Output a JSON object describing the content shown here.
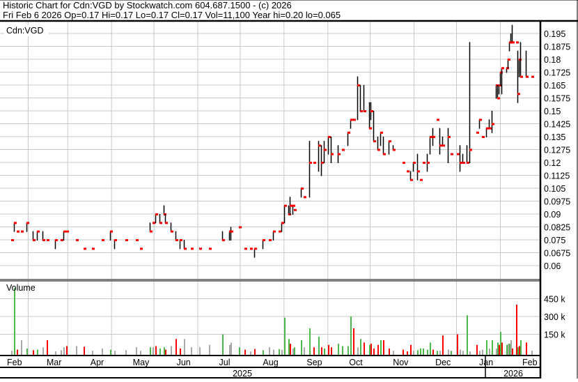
{
  "header": {
    "title": "Historic Chart for Cdn:VGD by Stockwatch.com 604.687.1500 - (c) 2026",
    "summary": "Fri Feb  6 2026  Op=0.17  Hi=0.17  Lo=0.17  Cl=0.17  Vol=11,100  Year hi=0.20  lo=0.065"
  },
  "colors": {
    "up": "#4cb84c",
    "down": "#ff0000",
    "unchanged": "#a8a8a8",
    "bar": "#000000",
    "close_tick": "#ff0000",
    "grid": "#c8c8c8"
  },
  "chart_data": [
    {
      "type": "ohlc",
      "symbol_label": "Cdn:VGD",
      "y_ticks": [
        "0.06",
        "0.0675",
        "0.075",
        "0.0825",
        "0.09",
        "0.0975",
        "0.105",
        "0.1125",
        "0.12",
        "0.1275",
        "0.135",
        "0.1425",
        "0.15",
        "0.1575",
        "0.165",
        "0.1725",
        "0.18",
        "0.1875",
        "0.195"
      ],
      "ylim": [
        0.0535,
        0.2025
      ],
      "grid": true,
      "x_months": [
        "Feb",
        "Mar",
        "Apr",
        "May",
        "Jun",
        "Jul",
        "Aug",
        "Sep",
        "Oct",
        "Nov",
        "Dec",
        "Jan",
        "Feb"
      ],
      "x_years": [
        "2025",
        "2026"
      ],
      "bars_fields": [
        "date",
        "high",
        "low",
        "close"
      ],
      "bars": [
        [
          "2025-02-03",
          0.075,
          0.075,
          0.075
        ],
        [
          "2025-02-05",
          0.085,
          0.08,
          0.085
        ],
        [
          "2025-02-07",
          0.08,
          0.08,
          0.08
        ],
        [
          "2025-02-10",
          0.08,
          0.08,
          0.08
        ],
        [
          "2025-02-14",
          0.085,
          0.08,
          0.085
        ],
        [
          "2025-02-18",
          0.08,
          0.075,
          0.075
        ],
        [
          "2025-02-21",
          0.08,
          0.075,
          0.08
        ],
        [
          "2025-02-25",
          0.08,
          0.075,
          0.075
        ],
        [
          "2025-02-28",
          0.075,
          0.075,
          0.075
        ],
        [
          "2025-03-06",
          0.075,
          0.07,
          0.075
        ],
        [
          "2025-03-10",
          0.075,
          0.075,
          0.075
        ],
        [
          "2025-03-12",
          0.08,
          0.075,
          0.08
        ],
        [
          "2025-03-14",
          0.08,
          0.08,
          0.08
        ],
        [
          "2025-03-21",
          0.075,
          0.075,
          0.075
        ],
        [
          "2025-03-26",
          0.07,
          0.07,
          0.07
        ],
        [
          "2025-04-01",
          0.07,
          0.07,
          0.07
        ],
        [
          "2025-04-08",
          0.075,
          0.075,
          0.075
        ],
        [
          "2025-04-14",
          0.08,
          0.075,
          0.08
        ],
        [
          "2025-04-17",
          0.075,
          0.07,
          0.075
        ],
        [
          "2025-04-25",
          0.075,
          0.075,
          0.075
        ],
        [
          "2025-05-02",
          0.075,
          0.075,
          0.075
        ],
        [
          "2025-05-05",
          0.07,
          0.07,
          0.07
        ],
        [
          "2025-05-12",
          0.085,
          0.08,
          0.08
        ],
        [
          "2025-05-14",
          0.085,
          0.085,
          0.085
        ],
        [
          "2025-05-16",
          0.09,
          0.085,
          0.09
        ],
        [
          "2025-05-19",
          0.09,
          0.085,
          0.085
        ],
        [
          "2025-05-22",
          0.095,
          0.09,
          0.09
        ],
        [
          "2025-05-23",
          0.09,
          0.085,
          0.085
        ],
        [
          "2025-05-27",
          0.085,
          0.08,
          0.08
        ],
        [
          "2025-05-30",
          0.08,
          0.075,
          0.075
        ],
        [
          "2025-06-02",
          0.075,
          0.07,
          0.075
        ],
        [
          "2025-06-05",
          0.075,
          0.07,
          0.07
        ],
        [
          "2025-06-10",
          0.07,
          0.07,
          0.07
        ],
        [
          "2025-06-16",
          0.07,
          0.07,
          0.07
        ],
        [
          "2025-06-23",
          0.07,
          0.07,
          0.07
        ],
        [
          "2025-07-02",
          0.08,
          0.075,
          0.075
        ],
        [
          "2025-07-07",
          0.08,
          0.075,
          0.08
        ],
        [
          "2025-07-08",
          0.0825,
          0.075,
          0.08
        ],
        [
          "2025-07-14",
          0.0825,
          0.0825,
          0.0825
        ],
        [
          "2025-07-18",
          0.07,
          0.07,
          0.07
        ],
        [
          "2025-07-22",
          0.07,
          0.07,
          0.07
        ],
        [
          "2025-07-25",
          0.07,
          0.065,
          0.07
        ],
        [
          "2025-07-31",
          0.075,
          0.07,
          0.075
        ],
        [
          "2025-08-04",
          0.075,
          0.075,
          0.075
        ],
        [
          "2025-08-07",
          0.08,
          0.075,
          0.08
        ],
        [
          "2025-08-11",
          0.08,
          0.08,
          0.08
        ],
        [
          "2025-08-13",
          0.085,
          0.08,
          0.085
        ],
        [
          "2025-08-15",
          0.095,
          0.085,
          0.095
        ],
        [
          "2025-08-18",
          0.095,
          0.09,
          0.09
        ],
        [
          "2025-08-19",
          0.1,
          0.09,
          0.095
        ],
        [
          "2025-08-21",
          0.095,
          0.09,
          0.095
        ],
        [
          "2025-08-22",
          0.0925,
          0.0925,
          0.0925
        ],
        [
          "2025-08-27",
          0.105,
          0.1,
          0.105
        ],
        [
          "2025-08-29",
          0.1,
          0.1,
          0.1
        ],
        [
          "2025-09-02",
          0.1325,
          0.1,
          0.12
        ],
        [
          "2025-09-05",
          0.12,
          0.12,
          0.12
        ],
        [
          "2025-09-08",
          0.1325,
          0.115,
          0.13
        ],
        [
          "2025-09-10",
          0.13,
          0.1125,
          0.12
        ],
        [
          "2025-09-12",
          0.1325,
          0.12,
          0.1275
        ],
        [
          "2025-09-15",
          0.135,
          0.125,
          0.135
        ],
        [
          "2025-09-17",
          0.135,
          0.12,
          0.125
        ],
        [
          "2025-09-22",
          0.13,
          0.12,
          0.125
        ],
        [
          "2025-09-25",
          0.1275,
          0.1275,
          0.1275
        ],
        [
          "2025-09-29",
          0.1375,
          0.13,
          0.1375
        ],
        [
          "2025-10-01",
          0.145,
          0.14,
          0.145
        ],
        [
          "2025-10-03",
          0.145,
          0.145,
          0.145
        ],
        [
          "2025-10-06",
          0.17,
          0.145,
          0.165
        ],
        [
          "2025-10-08",
          0.165,
          0.15,
          0.15
        ],
        [
          "2025-10-10",
          0.165,
          0.15,
          0.15
        ],
        [
          "2025-10-14",
          0.155,
          0.14,
          0.14
        ],
        [
          "2025-10-15",
          0.155,
          0.145,
          0.15
        ],
        [
          "2025-10-17",
          0.15,
          0.1325,
          0.1325
        ],
        [
          "2025-10-20",
          0.135,
          0.1275,
          0.1275
        ],
        [
          "2025-10-22",
          0.1375,
          0.13,
          0.1375
        ],
        [
          "2025-10-24",
          0.135,
          0.125,
          0.125
        ],
        [
          "2025-10-28",
          0.1325,
          0.125,
          0.1325
        ],
        [
          "2025-10-31",
          0.13,
          0.1275,
          0.1275
        ],
        [
          "2025-11-07",
          0.12,
          0.12,
          0.12
        ],
        [
          "2025-11-10",
          0.115,
          0.115,
          0.115
        ],
        [
          "2025-11-12",
          0.115,
          0.11,
          0.11
        ],
        [
          "2025-11-14",
          0.12,
          0.115,
          0.12
        ],
        [
          "2025-11-17",
          0.125,
          0.11,
          0.115
        ],
        [
          "2025-11-19",
          0.11,
          0.11,
          0.11
        ],
        [
          "2025-11-21",
          0.12,
          0.12,
          0.12
        ],
        [
          "2025-11-24",
          0.125,
          0.115,
          0.12
        ],
        [
          "2025-11-26",
          0.135,
          0.125,
          0.135
        ],
        [
          "2025-11-28",
          0.14,
          0.13,
          0.135
        ],
        [
          "2025-12-01",
          0.145,
          0.145,
          0.145
        ],
        [
          "2025-12-03",
          0.14,
          0.125,
          0.13
        ],
        [
          "2025-12-05",
          0.135,
          0.13,
          0.13
        ],
        [
          "2025-12-09",
          0.14,
          0.12,
          0.135
        ],
        [
          "2025-12-11",
          0.125,
          0.125,
          0.125
        ],
        [
          "2025-12-15",
          0.125,
          0.125,
          0.125
        ],
        [
          "2025-12-17",
          0.13,
          0.115,
          0.12
        ],
        [
          "2025-12-19",
          0.125,
          0.12,
          0.12
        ],
        [
          "2025-12-22",
          0.13,
          0.12,
          0.12
        ],
        [
          "2025-12-24",
          0.19,
          0.12,
          0.1275
        ],
        [
          "2025-12-29",
          0.1375,
          0.1375,
          0.1375
        ],
        [
          "2025-12-31",
          0.145,
          0.14,
          0.145
        ],
        [
          "2026-01-02",
          0.135,
          0.135,
          0.135
        ],
        [
          "2026-01-05",
          0.14,
          0.135,
          0.14
        ],
        [
          "2026-01-07",
          0.145,
          0.14,
          0.14
        ],
        [
          "2026-01-09",
          0.15,
          0.1375,
          0.1425
        ],
        [
          "2026-01-12",
          0.165,
          0.1575,
          0.165
        ],
        [
          "2026-01-13",
          0.165,
          0.1575,
          0.1575
        ],
        [
          "2026-01-14",
          0.165,
          0.16,
          0.165
        ],
        [
          "2026-01-15",
          0.1725,
          0.165,
          0.1725
        ],
        [
          "2026-01-16",
          0.175,
          0.16,
          0.175
        ],
        [
          "2026-01-19",
          0.175,
          0.1725,
          0.175
        ],
        [
          "2026-01-20",
          0.18,
          0.175,
          0.18
        ],
        [
          "2026-01-21",
          0.19,
          0.185,
          0.19
        ],
        [
          "2026-01-22",
          0.195,
          0.19,
          0.19
        ],
        [
          "2026-01-23",
          0.2,
          0.19,
          0.19
        ],
        [
          "2026-01-26",
          0.19,
          0.19,
          0.19
        ],
        [
          "2026-01-27",
          0.185,
          0.155,
          0.16
        ],
        [
          "2026-01-28",
          0.18,
          0.17,
          0.18
        ],
        [
          "2026-01-29",
          0.19,
          0.17,
          0.17
        ],
        [
          "2026-02-02",
          0.185,
          0.17,
          0.17
        ],
        [
          "2026-02-06",
          0.17,
          0.17,
          0.17
        ]
      ]
    },
    {
      "type": "bar",
      "title": "Volume",
      "y_ticks": [
        "150 k",
        "300 k",
        "450 k"
      ],
      "y_tick_values": [
        150000,
        300000,
        450000
      ],
      "ylim": [
        0,
        620000
      ],
      "grid": true,
      "volume_fields": [
        "volume",
        "direction"
      ],
      "volumes": [
        [
          10000,
          "unchanged"
        ],
        [
          540000,
          "up"
        ],
        [
          20000,
          "down"
        ],
        [
          100000,
          "unchanged"
        ],
        [
          30000,
          "up"
        ],
        [
          15000,
          "down"
        ],
        [
          20000,
          "up"
        ],
        [
          40000,
          "unchanged"
        ],
        [
          100000,
          "down"
        ],
        [
          5000,
          "unchanged"
        ],
        [
          15000,
          "unchanged"
        ],
        [
          40000,
          "unchanged"
        ],
        [
          50000,
          "down"
        ],
        [
          50000,
          "unchanged"
        ],
        [
          45000,
          "down"
        ],
        [
          10000,
          "unchanged"
        ],
        [
          30000,
          "unchanged"
        ],
        [
          20000,
          "up"
        ],
        [
          10000,
          "unchanged"
        ],
        [
          15000,
          "unchanged"
        ],
        [
          40000,
          "unchanged"
        ],
        [
          10000,
          "unchanged"
        ],
        [
          40000,
          "up"
        ],
        [
          40000,
          "unchanged"
        ],
        [
          50000,
          "down"
        ],
        [
          30000,
          "up"
        ],
        [
          40000,
          "up"
        ],
        [
          20000,
          "down"
        ],
        [
          50000,
          "unchanged"
        ],
        [
          110000,
          "down"
        ],
        [
          30000,
          "down"
        ],
        [
          110000,
          "unchanged"
        ],
        [
          40000,
          "unchanged"
        ],
        [
          40000,
          "unchanged"
        ],
        [
          60000,
          "unchanged"
        ],
        [
          150000,
          "up"
        ],
        [
          60000,
          "unchanged"
        ],
        [
          80000,
          "unchanged"
        ],
        [
          40000,
          "up"
        ],
        [
          20000,
          "down"
        ],
        [
          5000,
          "unchanged"
        ],
        [
          25000,
          "down"
        ],
        [
          15000,
          "up"
        ],
        [
          40000,
          "unchanged"
        ],
        [
          20000,
          "unchanged"
        ],
        [
          25000,
          "up"
        ],
        [
          20000,
          "unchanged"
        ],
        [
          290000,
          "up"
        ],
        [
          110000,
          "up"
        ],
        [
          70000,
          "down"
        ],
        [
          30000,
          "unchanged"
        ],
        [
          40000,
          "up"
        ],
        [
          100000,
          "up"
        ],
        [
          40000,
          "unchanged"
        ],
        [
          200000,
          "up"
        ],
        [
          40000,
          "down"
        ],
        [
          130000,
          "up"
        ],
        [
          40000,
          "down"
        ],
        [
          30000,
          "up"
        ],
        [
          60000,
          "down"
        ],
        [
          40000,
          "down"
        ],
        [
          70000,
          "up"
        ],
        [
          50000,
          "up"
        ],
        [
          50000,
          "up"
        ],
        [
          300000,
          "up"
        ],
        [
          200000,
          "down"
        ],
        [
          40000,
          "unchanged"
        ],
        [
          110000,
          "up"
        ],
        [
          80000,
          "down"
        ],
        [
          60000,
          "up"
        ],
        [
          70000,
          "down"
        ],
        [
          30000,
          "down"
        ],
        [
          60000,
          "down"
        ],
        [
          100000,
          "up"
        ],
        [
          100000,
          "down"
        ],
        [
          30000,
          "down"
        ],
        [
          10000,
          "unchanged"
        ],
        [
          20000,
          "down"
        ],
        [
          5000,
          "down"
        ],
        [
          60000,
          "down"
        ],
        [
          10000,
          "unchanged"
        ],
        [
          15000,
          "up"
        ],
        [
          30000,
          "up"
        ],
        [
          30000,
          "up"
        ],
        [
          20000,
          "up"
        ],
        [
          80000,
          "up"
        ],
        [
          20000,
          "down"
        ],
        [
          10000,
          "up"
        ],
        [
          10000,
          "unchanged"
        ],
        [
          140000,
          "down"
        ],
        [
          20000,
          "unchanged"
        ],
        [
          10000,
          "up"
        ],
        [
          150000,
          "down"
        ],
        [
          20000,
          "unchanged"
        ],
        [
          10000,
          "unchanged"
        ],
        [
          310000,
          "up"
        ],
        [
          5000,
          "unchanged"
        ],
        [
          60000,
          "down"
        ],
        [
          10000,
          "unchanged"
        ],
        [
          20000,
          "unchanged"
        ],
        [
          100000,
          "up"
        ],
        [
          30000,
          "unchanged"
        ],
        [
          100000,
          "up"
        ],
        [
          30000,
          "unchanged"
        ],
        [
          80000,
          "up"
        ],
        [
          60000,
          "down"
        ],
        [
          170000,
          "up"
        ],
        [
          80000,
          "down"
        ],
        [
          60000,
          "up"
        ],
        [
          70000,
          "unchanged"
        ],
        [
          70000,
          "up"
        ],
        [
          100000,
          "unchanged"
        ],
        [
          30000,
          "down"
        ],
        [
          400000,
          "down"
        ],
        [
          40000,
          "up"
        ],
        [
          50000,
          "down"
        ],
        [
          100000,
          "up"
        ],
        [
          80000,
          "down"
        ],
        [
          11100,
          "unchanged"
        ]
      ]
    }
  ]
}
